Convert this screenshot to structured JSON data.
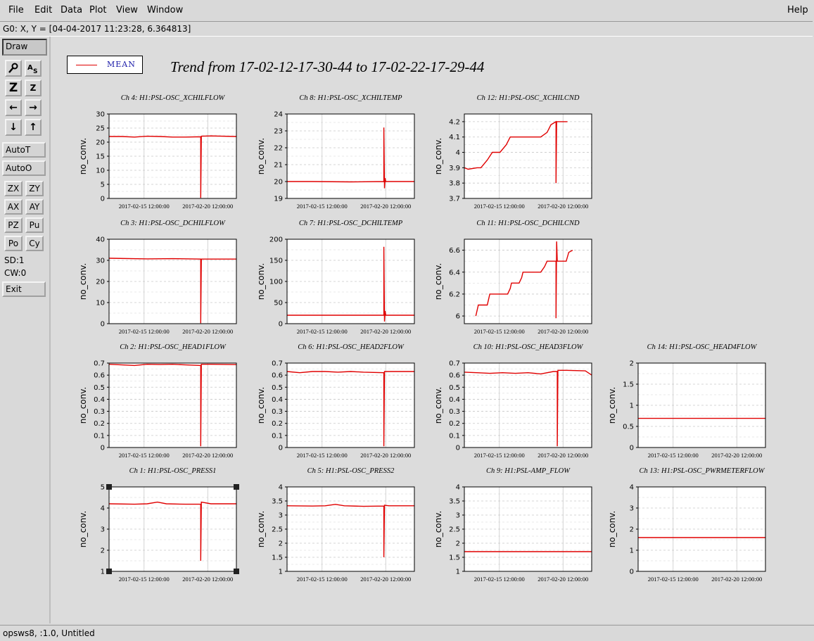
{
  "menubar": {
    "items": [
      {
        "label": "File",
        "name": "menu-file"
      },
      {
        "label": "Edit",
        "name": "menu-edit"
      },
      {
        "label": "Data",
        "name": "menu-data"
      },
      {
        "label": "Plot",
        "name": "menu-plot"
      },
      {
        "label": "View",
        "name": "menu-view"
      },
      {
        "label": "Window",
        "name": "menu-window"
      }
    ],
    "help": "Help"
  },
  "coordinates": "G0: X, Y = [04-04-2017 11:23:28, 6.364813]",
  "toolbar": {
    "draw": "Draw",
    "autot": "AutoT",
    "autoo": "AutoO",
    "zx": "ZX",
    "zy": "ZY",
    "ax": "AX",
    "ay": "AY",
    "pz": "PZ",
    "pu": "Pu",
    "po": "Po",
    "cy": "Cy",
    "sd": "SD:1",
    "cw": "CW:0",
    "exit": "Exit",
    "icons": [
      "magnify-icon",
      "text-size-icon",
      "zoom-in-icon",
      "zoom-out-icon",
      "arrow-left-icon",
      "arrow-right-icon",
      "arrow-down-icon",
      "arrow-up-icon"
    ]
  },
  "legend": {
    "label": "MEAN",
    "color": "#e00000"
  },
  "title": "Trend from 17-02-12-17-30-44 to 17-02-22-17-29-44",
  "status": "opsws8, :1.0, Untitled",
  "chart_data": [
    {
      "type": "line",
      "title": "Ch 4: H1:PSL-OSC_XCHILFLOW",
      "ylabel": "no_conv.",
      "ylim": [
        0,
        30
      ],
      "yticks": [
        "0",
        "5",
        "10",
        "15",
        "20",
        "25",
        "30"
      ],
      "xticks": [
        "2017-02-15 12:00:00",
        "2017-02-20 12:00:00"
      ],
      "x_range_days": [
        "2017-02-12 17:30:44",
        "2017-02-22 17:29:44"
      ],
      "series": [
        {
          "values": [
            [
              0,
              22
            ],
            [
              1,
              22
            ],
            [
              2,
              21.8
            ],
            [
              3,
              22.1
            ],
            [
              4,
              22
            ],
            [
              5,
              21.8
            ],
            [
              6,
              21.8
            ],
            [
              7.2,
              21.9
            ],
            [
              7.2,
              0.2
            ],
            [
              7.25,
              22.1
            ],
            [
              8,
              22.2
            ],
            [
              10,
              22
            ]
          ]
        }
      ],
      "color": "#e00000"
    },
    {
      "type": "line",
      "title": "Ch 8: H1:PSL-OSC_XCHILTEMP",
      "ylabel": "no_conv.",
      "ylim": [
        19,
        24
      ],
      "yticks": [
        "19",
        "20",
        "21",
        "22",
        "23",
        "24"
      ],
      "xticks": [
        "2017-02-15 12:00:00",
        "2017-02-20 12:00:00"
      ],
      "series": [
        {
          "values": [
            [
              0,
              20
            ],
            [
              2,
              20
            ],
            [
              5,
              19.98
            ],
            [
              7.6,
              20
            ],
            [
              7.6,
              23.2
            ],
            [
              7.65,
              19.6
            ],
            [
              7.7,
              20.2
            ],
            [
              7.75,
              20
            ],
            [
              10,
              20
            ]
          ]
        }
      ],
      "color": "#e00000"
    },
    {
      "type": "line",
      "title": "Ch 12: H1:PSL-OSC_XCHILCND",
      "ylabel": "no_conv.",
      "ylim": [
        3.7,
        4.25
      ],
      "yticks": [
        "3.7",
        "3.8",
        "3.9",
        "4",
        "4.1",
        "4.2"
      ],
      "xticks": [
        "2017-02-15 12:00:00",
        "2017-02-20 12:00:00"
      ],
      "series": [
        {
          "values": [
            [
              0,
              3.9
            ],
            [
              0.3,
              3.89
            ],
            [
              1,
              3.9
            ],
            [
              1.3,
              3.9
            ],
            [
              1.8,
              3.95
            ],
            [
              2.2,
              4
            ],
            [
              2.8,
              4
            ],
            [
              3.3,
              4.05
            ],
            [
              3.6,
              4.1
            ],
            [
              4,
              4.1
            ],
            [
              6,
              4.1
            ],
            [
              6.5,
              4.13
            ],
            [
              6.8,
              4.18
            ],
            [
              7.2,
              4.2
            ],
            [
              7.2,
              3.8
            ],
            [
              7.25,
              4.2
            ],
            [
              8,
              4.2
            ],
            [
              8.1,
              4.2
            ]
          ]
        }
      ],
      "color": "#e00000"
    },
    {
      "type": "line",
      "title": "Ch 3: H1:PSL-OSC_DCHILFLOW",
      "ylabel": "no_conv.",
      "ylim": [
        0,
        40
      ],
      "yticks": [
        "0",
        "10",
        "20",
        "30",
        "40"
      ],
      "xticks": [
        "2017-02-15 12:00:00",
        "2017-02-20 12:00:00"
      ],
      "series": [
        {
          "values": [
            [
              0,
              31
            ],
            [
              3,
              30.7
            ],
            [
              5,
              30.8
            ],
            [
              7.2,
              30.6
            ],
            [
              7.2,
              0.2
            ],
            [
              7.25,
              30.6
            ],
            [
              10,
              30.6
            ]
          ]
        }
      ],
      "color": "#e00000"
    },
    {
      "type": "line",
      "title": "Ch 7: H1:PSL-OSC_DCHILTEMP",
      "ylabel": "no_conv.",
      "ylim": [
        0,
        200
      ],
      "yticks": [
        "0",
        "50",
        "100",
        "150",
        "200"
      ],
      "xticks": [
        "2017-02-15 12:00:00",
        "2017-02-20 12:00:00"
      ],
      "series": [
        {
          "values": [
            [
              0,
              20
            ],
            [
              3,
              20
            ],
            [
              7.6,
              20
            ],
            [
              7.6,
              182
            ],
            [
              7.65,
              5
            ],
            [
              7.7,
              30
            ],
            [
              7.75,
              20
            ],
            [
              10,
              20
            ]
          ]
        }
      ],
      "color": "#e00000"
    },
    {
      "type": "line",
      "title": "Ch 11: H1:PSL-OSC_DCHILCND",
      "ylabel": "no_conv.",
      "ylim": [
        5.93,
        6.7
      ],
      "yticks": [
        "6",
        "6.2",
        "6.4",
        "6.6"
      ],
      "xticks": [
        "2017-02-15 12:00:00",
        "2017-02-20 12:00:00"
      ],
      "series": [
        {
          "values": [
            [
              0.9,
              6
            ],
            [
              1,
              6.05
            ],
            [
              1.1,
              6.1
            ],
            [
              1.8,
              6.1
            ],
            [
              1.9,
              6.15
            ],
            [
              2,
              6.2
            ],
            [
              3.4,
              6.2
            ],
            [
              3.6,
              6.25
            ],
            [
              3.7,
              6.3
            ],
            [
              4.3,
              6.3
            ],
            [
              4.5,
              6.35
            ],
            [
              4.6,
              6.4
            ],
            [
              6,
              6.4
            ],
            [
              6.3,
              6.45
            ],
            [
              6.5,
              6.5
            ],
            [
              7.2,
              6.5
            ],
            [
              7.2,
              5.98
            ],
            [
              7.25,
              6.68
            ],
            [
              7.3,
              6.5
            ],
            [
              8,
              6.5
            ],
            [
              8.2,
              6.58
            ],
            [
              8.5,
              6.6
            ]
          ]
        }
      ],
      "color": "#e00000"
    },
    {
      "type": "line",
      "title": "Ch 2: H1:PSL-OSC_HEAD1FLOW",
      "ylabel": "no_conv.",
      "ylim": [
        0,
        0.7
      ],
      "yticks": [
        "0",
        "0.1",
        "0.2",
        "0.3",
        "0.4",
        "0.5",
        "0.6",
        "0.7"
      ],
      "xticks": [
        "2017-02-15 12:00:00",
        "2017-02-20 12:00:00"
      ],
      "series": [
        {
          "values": [
            [
              0,
              0.69
            ],
            [
              1,
              0.685
            ],
            [
              2,
              0.68
            ],
            [
              3,
              0.69
            ],
            [
              4,
              0.688
            ],
            [
              5,
              0.69
            ],
            [
              6,
              0.685
            ],
            [
              7.2,
              0.68
            ],
            [
              7.2,
              0.01
            ],
            [
              7.25,
              0.69
            ],
            [
              8,
              0.69
            ],
            [
              10,
              0.687
            ]
          ]
        }
      ],
      "color": "#e00000"
    },
    {
      "type": "line",
      "title": "Ch 6: H1:PSL-OSC_HEAD2FLOW",
      "ylabel": "no_conv.",
      "ylim": [
        0,
        0.7
      ],
      "yticks": [
        "0",
        "0.1",
        "0.2",
        "0.3",
        "0.4",
        "0.5",
        "0.6",
        "0.7"
      ],
      "xticks": [
        "2017-02-15 12:00:00",
        "2017-02-20 12:00:00"
      ],
      "series": [
        {
          "values": [
            [
              0,
              0.63
            ],
            [
              1,
              0.62
            ],
            [
              2,
              0.63
            ],
            [
              3,
              0.63
            ],
            [
              4,
              0.625
            ],
            [
              5,
              0.63
            ],
            [
              6,
              0.625
            ],
            [
              7.6,
              0.62
            ],
            [
              7.6,
              0.01
            ],
            [
              7.65,
              0.63
            ],
            [
              8,
              0.63
            ],
            [
              10,
              0.63
            ]
          ]
        }
      ],
      "color": "#e00000"
    },
    {
      "type": "line",
      "title": "Ch 10: H1:PSL-OSC_HEAD3FLOW",
      "ylabel": "no_conv.",
      "ylim": [
        0,
        0.7
      ],
      "yticks": [
        "0",
        "0.1",
        "0.2",
        "0.3",
        "0.4",
        "0.5",
        "0.6",
        "0.7"
      ],
      "xticks": [
        "2017-02-15 12:00:00",
        "2017-02-20 12:00:00"
      ],
      "series": [
        {
          "values": [
            [
              0,
              0.625
            ],
            [
              1,
              0.62
            ],
            [
              2,
              0.615
            ],
            [
              3,
              0.62
            ],
            [
              4,
              0.615
            ],
            [
              5,
              0.62
            ],
            [
              6,
              0.61
            ],
            [
              7,
              0.63
            ],
            [
              7.3,
              0.63
            ],
            [
              7.3,
              0.01
            ],
            [
              7.35,
              0.64
            ],
            [
              8,
              0.64
            ],
            [
              9.5,
              0.635
            ],
            [
              10,
              0.6
            ]
          ]
        }
      ],
      "color": "#e00000"
    },
    {
      "type": "line",
      "title": "Ch 14: H1:PSL-OSC_HEAD4FLOW",
      "ylabel": "no_conv.",
      "ylim": [
        0,
        2
      ],
      "yticks": [
        "0",
        "0.5",
        "1",
        "1.5",
        "2"
      ],
      "xticks": [
        "2017-02-15 12:00:00",
        "2017-02-20 12:00:00"
      ],
      "series": [
        {
          "values": [
            [
              0,
              0.69
            ],
            [
              10,
              0.69
            ]
          ]
        }
      ],
      "color": "#e00000"
    },
    {
      "type": "line",
      "title": "Ch 1: H1:PSL-OSC_PRESS1",
      "ylabel": "no_conv.",
      "ylim": [
        1,
        5
      ],
      "yticks": [
        "1",
        "2",
        "3",
        "4",
        "5"
      ],
      "xticks": [
        "2017-02-15 12:00:00",
        "2017-02-20 12:00:00"
      ],
      "series": [
        {
          "values": [
            [
              0,
              4.2
            ],
            [
              2,
              4.18
            ],
            [
              3,
              4.2
            ],
            [
              3.8,
              4.28
            ],
            [
              4.5,
              4.2
            ],
            [
              6,
              4.18
            ],
            [
              7.2,
              4.18
            ],
            [
              7.2,
              1.5
            ],
            [
              7.25,
              4.28
            ],
            [
              8,
              4.2
            ],
            [
              10,
              4.2
            ]
          ]
        }
      ],
      "color": "#e00000"
    },
    {
      "type": "line",
      "title": "Ch 5: H1:PSL-OSC_PRESS2",
      "ylabel": "no_conv.",
      "ylim": [
        1,
        4
      ],
      "yticks": [
        "1",
        "1.5",
        "2",
        "2.5",
        "3",
        "3.5",
        "4"
      ],
      "xticks": [
        "2017-02-15 12:00:00",
        "2017-02-20 12:00:00"
      ],
      "series": [
        {
          "values": [
            [
              0,
              3.33
            ],
            [
              2,
              3.32
            ],
            [
              3,
              3.33
            ],
            [
              3.8,
              3.38
            ],
            [
              4.5,
              3.33
            ],
            [
              6,
              3.31
            ],
            [
              7.6,
              3.32
            ],
            [
              7.6,
              1.5
            ],
            [
              7.65,
              3.35
            ],
            [
              8,
              3.33
            ],
            [
              10,
              3.33
            ]
          ]
        }
      ],
      "color": "#e00000"
    },
    {
      "type": "line",
      "title": "Ch 9: H1:PSL-AMP_FLOW",
      "ylabel": "no_conv.",
      "ylim": [
        1,
        4
      ],
      "yticks": [
        "1",
        "1.5",
        "2",
        "2.5",
        "3",
        "3.5",
        "4"
      ],
      "xticks": [
        "2017-02-15 12:00:00",
        "2017-02-20 12:00:00"
      ],
      "series": [
        {
          "values": [
            [
              0,
              1.7
            ],
            [
              10,
              1.7
            ]
          ]
        }
      ],
      "color": "#e00000"
    },
    {
      "type": "line",
      "title": "Ch 13: H1:PSL-OSC_PWRMETERFLOW",
      "ylabel": "no_conv.",
      "ylim": [
        0,
        4
      ],
      "yticks": [
        "0",
        "1",
        "2",
        "3",
        "4"
      ],
      "xticks": [
        "2017-02-15 12:00:00",
        "2017-02-20 12:00:00"
      ],
      "series": [
        {
          "values": [
            [
              0,
              1.6
            ],
            [
              10,
              1.6
            ]
          ]
        }
      ],
      "color": "#e00000"
    }
  ]
}
